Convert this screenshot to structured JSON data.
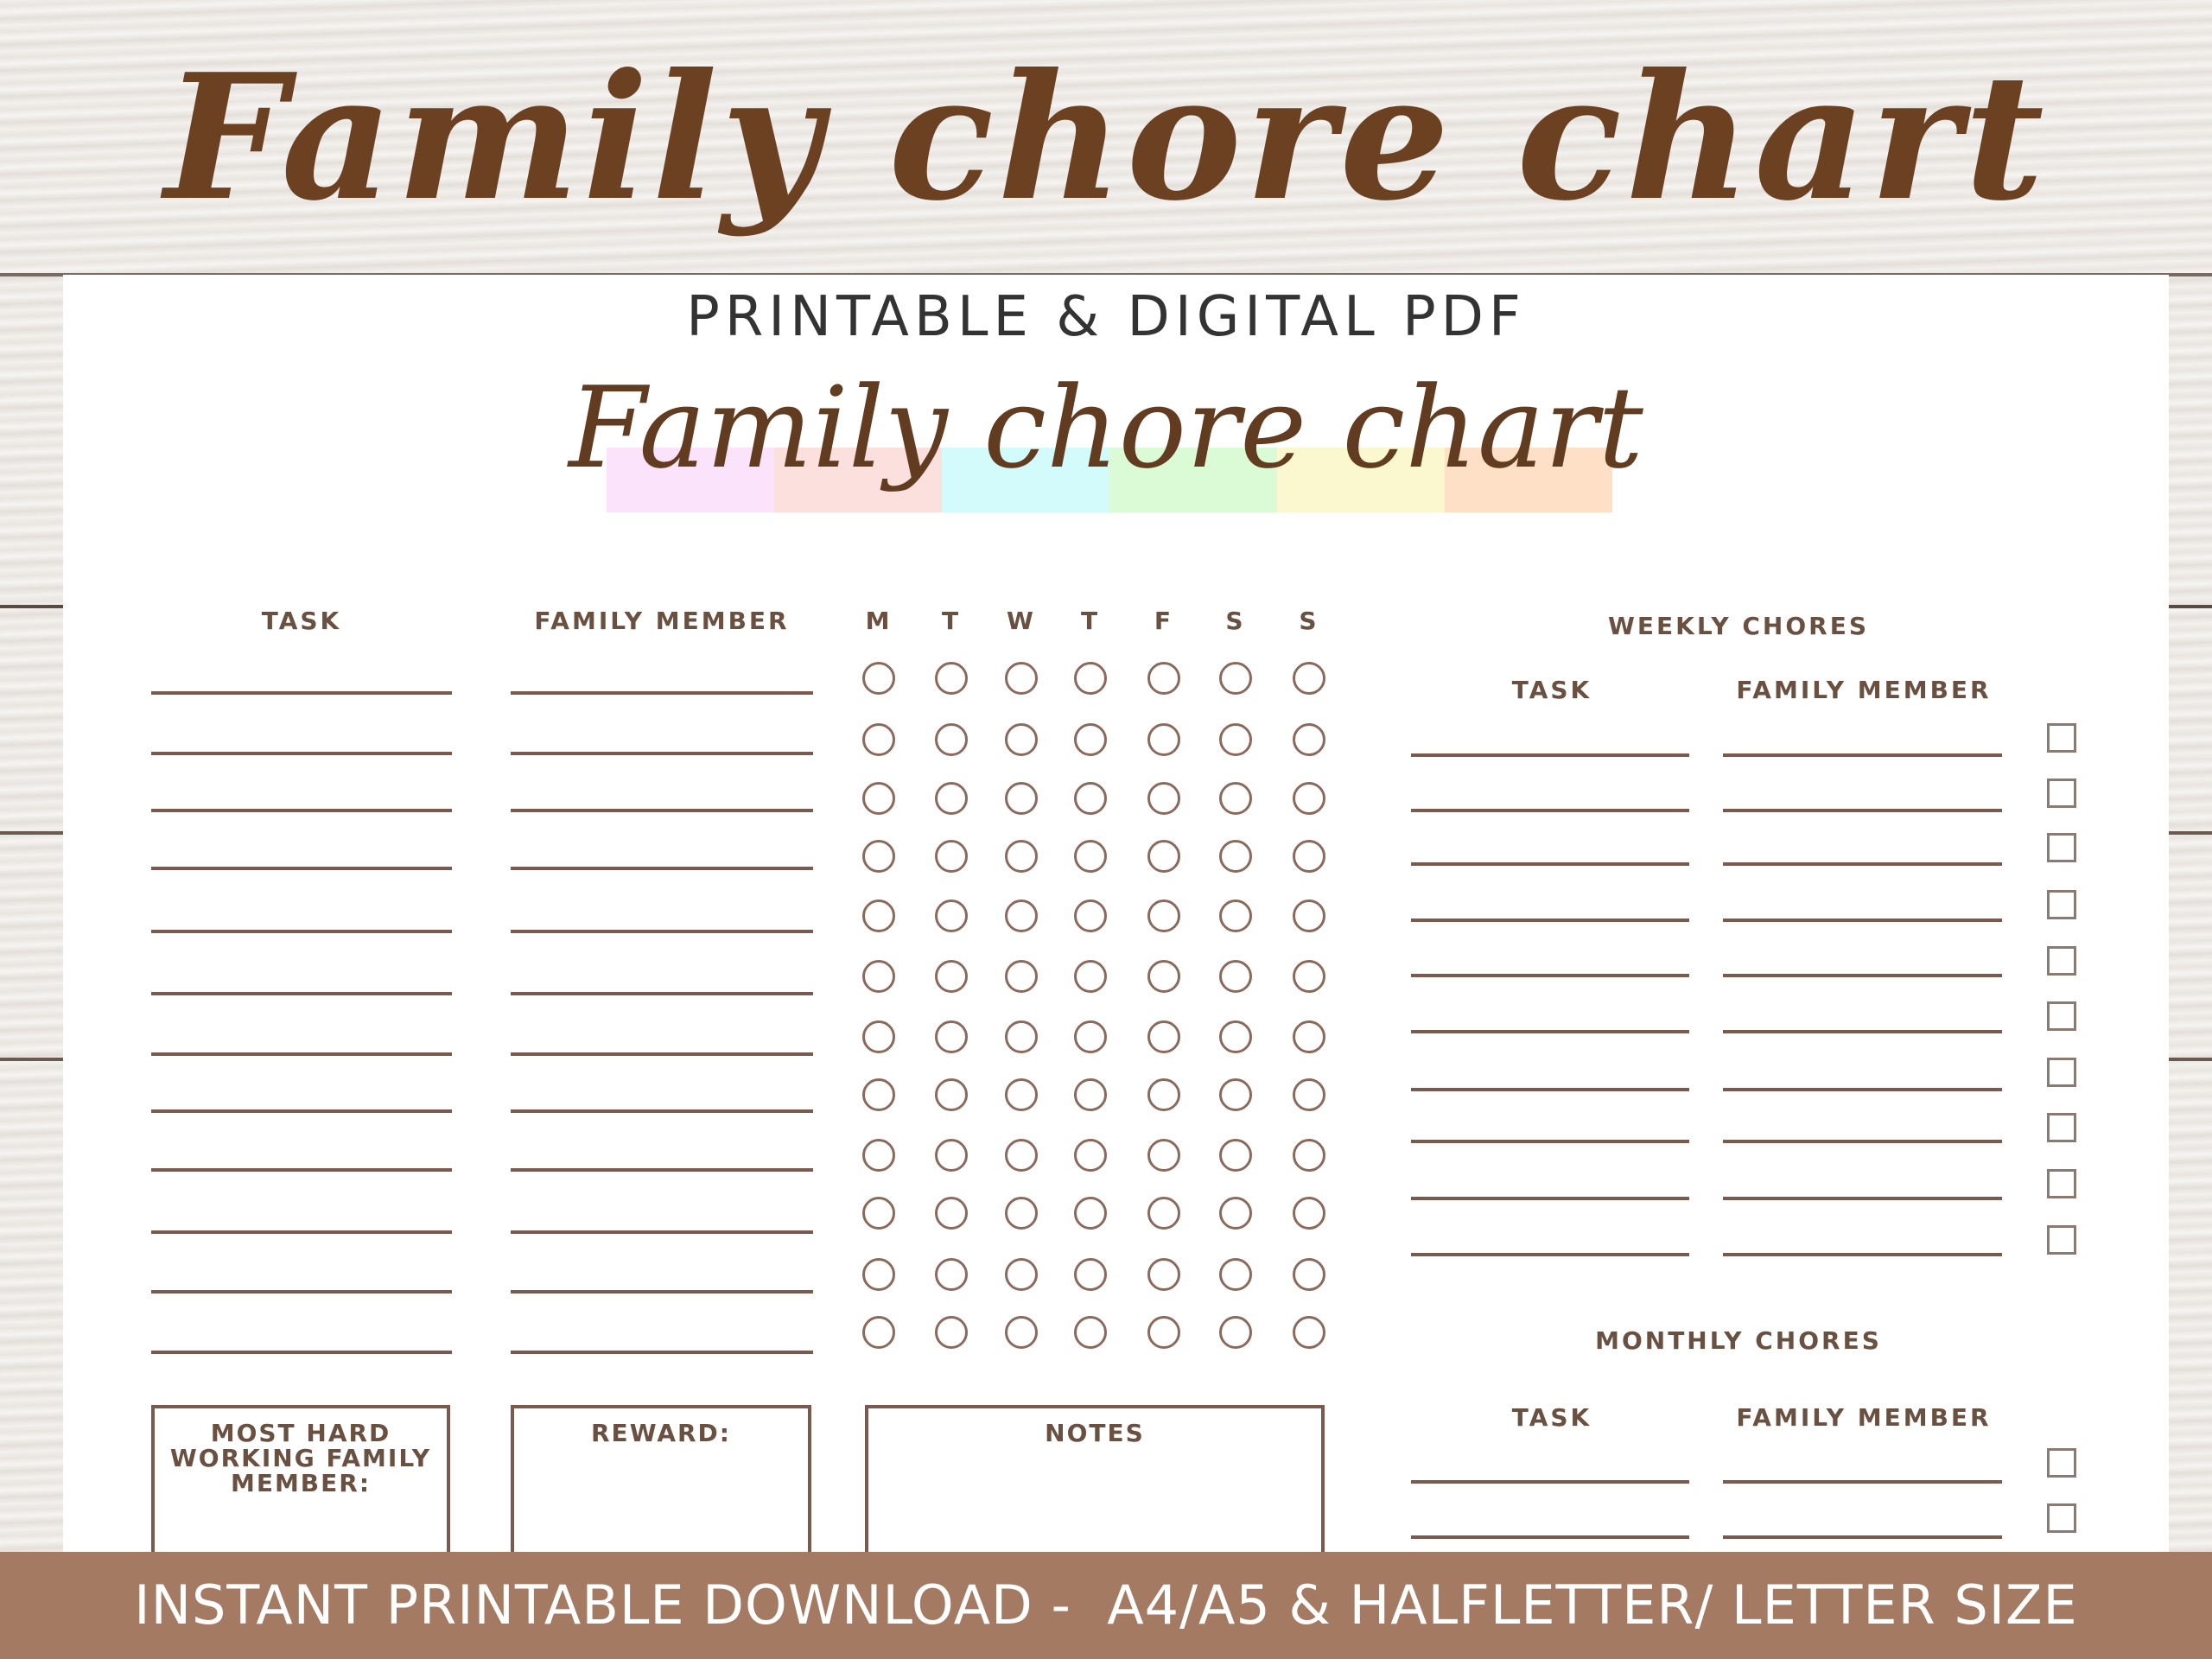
{
  "header": {
    "title": "Family chore chart",
    "subtitle": "PRINTABLE & DIGITAL PDF"
  },
  "sheet": {
    "title": "Family chore chart",
    "strip_colors": [
      "#fbe3fb",
      "#fbe0de",
      "#d4fbfb",
      "#dbfbd6",
      "#fbf8cf",
      "#fde0c6"
    ],
    "daily": {
      "task_header": "TASK",
      "member_header": "FAMILY MEMBER",
      "days": [
        "M",
        "T",
        "W",
        "T",
        "F",
        "S",
        "S"
      ]
    },
    "weekly": {
      "title": "WEEKLY CHORES",
      "task_header": "TASK",
      "member_header": "FAMILY MEMBER"
    },
    "monthly": {
      "title": "MONTHLY CHORES",
      "task_header": "TASK",
      "member_header": "FAMILY MEMBER"
    },
    "boxes": {
      "hardworking": "MOST HARD WORKING FAMILY MEMBER:",
      "reward": "REWARD:",
      "notes": "NOTES"
    }
  },
  "banner": {
    "text": "INSTANT PRINTABLE DOWNLOAD -  A4/A5 & HALFLETTER/ LETTER SIZE"
  },
  "colors": {
    "brown": "#6b4122",
    "banner": "#a57a63"
  }
}
